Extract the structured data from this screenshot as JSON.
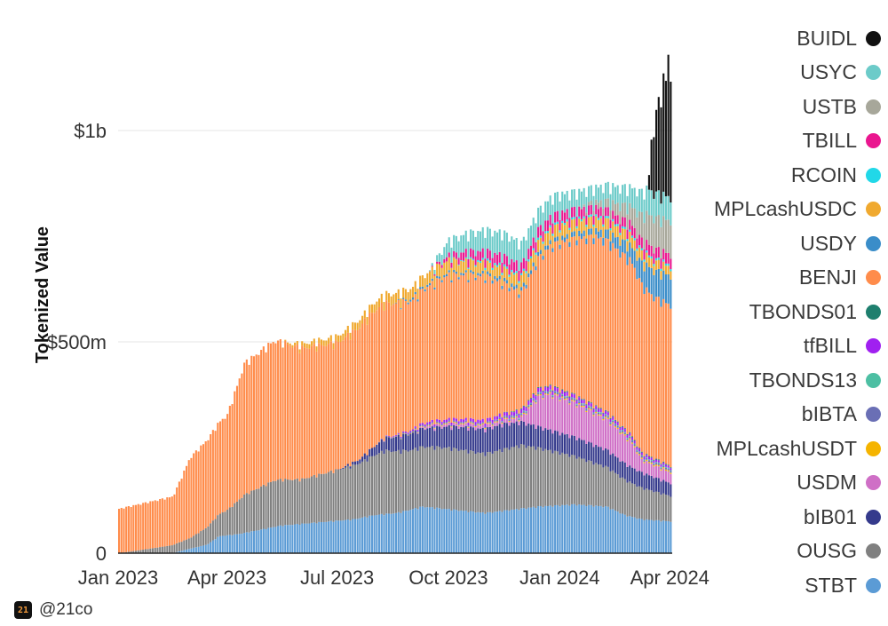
{
  "chart_data": {
    "type": "area",
    "stacked": true,
    "ylabel": "Tokenized Value",
    "ylim": [
      0,
      1250000000
    ],
    "yticks": [
      {
        "value": 0,
        "label": "0"
      },
      {
        "value": 500000000,
        "label": "$500m"
      },
      {
        "value": 1000000000,
        "label": "$1b"
      }
    ],
    "xrange": [
      "2023-01-01",
      "2024-04-03"
    ],
    "xticks": [
      {
        "date": "2023-01-01",
        "label": "Jan 2023"
      },
      {
        "date": "2023-04-01",
        "label": "Apr 2023"
      },
      {
        "date": "2023-07-01",
        "label": "Jul 2023"
      },
      {
        "date": "2023-10-01",
        "label": "Oct 2023"
      },
      {
        "date": "2024-01-01",
        "label": "Jan 2024"
      },
      {
        "date": "2024-04-01",
        "label": "Apr 2024"
      }
    ],
    "grid": "horizontal",
    "legend_position": "right",
    "series": [
      {
        "name": "STBT",
        "color": "#5b9bd5",
        "points": [
          [
            "2023-01-01",
            0
          ],
          [
            "2023-02-14",
            0
          ],
          [
            "2023-02-28",
            10
          ],
          [
            "2023-03-15",
            20
          ],
          [
            "2023-03-25",
            40
          ],
          [
            "2023-04-10",
            45
          ],
          [
            "2023-05-15",
            65
          ],
          [
            "2023-07-15",
            80
          ],
          [
            "2023-08-01",
            90
          ],
          [
            "2023-08-20",
            95
          ],
          [
            "2023-09-10",
            110
          ],
          [
            "2023-11-01",
            95
          ],
          [
            "2023-12-15",
            110
          ],
          [
            "2024-01-15",
            115
          ],
          [
            "2024-02-10",
            110
          ],
          [
            "2024-02-25",
            90
          ],
          [
            "2024-03-10",
            80
          ],
          [
            "2024-04-03",
            75
          ]
        ]
      },
      {
        "name": "OUSG",
        "color": "#808080",
        "points": [
          [
            "2023-01-01",
            0
          ],
          [
            "2023-03-01",
            25
          ],
          [
            "2023-04-01",
            60
          ],
          [
            "2023-04-15",
            90
          ],
          [
            "2023-05-10",
            110
          ],
          [
            "2023-06-01",
            105
          ],
          [
            "2023-07-01",
            120
          ],
          [
            "2023-07-20",
            130
          ],
          [
            "2023-08-10",
            150
          ],
          [
            "2023-09-01",
            140
          ],
          [
            "2023-10-01",
            145
          ],
          [
            "2023-11-01",
            140
          ],
          [
            "2023-12-01",
            150
          ],
          [
            "2024-01-01",
            125
          ],
          [
            "2024-02-01",
            100
          ],
          [
            "2024-03-01",
            80
          ],
          [
            "2024-04-03",
            60
          ]
        ]
      },
      {
        "name": "bIB01",
        "color": "#353a8c",
        "points": [
          [
            "2023-01-01",
            0
          ],
          [
            "2023-07-01",
            0
          ],
          [
            "2023-07-20",
            10
          ],
          [
            "2023-08-10",
            30
          ],
          [
            "2023-09-01",
            40
          ],
          [
            "2023-10-15",
            55
          ],
          [
            "2023-11-15",
            60
          ],
          [
            "2023-12-15",
            50
          ],
          [
            "2024-01-15",
            45
          ],
          [
            "2024-02-15",
            40
          ],
          [
            "2024-03-15",
            35
          ],
          [
            "2024-04-03",
            30
          ]
        ]
      },
      {
        "name": "USDM",
        "color": "#cf6fc6",
        "points": [
          [
            "2023-01-01",
            0
          ],
          [
            "2023-09-01",
            0
          ],
          [
            "2023-09-15",
            5
          ],
          [
            "2023-12-01",
            10
          ],
          [
            "2023-12-15",
            70
          ],
          [
            "2023-12-25",
            85
          ],
          [
            "2024-01-15",
            80
          ],
          [
            "2024-02-15",
            70
          ],
          [
            "2024-03-01",
            60
          ],
          [
            "2024-03-10",
            30
          ],
          [
            "2024-04-03",
            25
          ]
        ]
      },
      {
        "name": "MPLcashUSDT",
        "color": "#f5b400",
        "points": [
          [
            "2023-01-01",
            0
          ],
          [
            "2023-08-01",
            0
          ],
          [
            "2023-10-01",
            2
          ],
          [
            "2024-04-03",
            3
          ]
        ]
      },
      {
        "name": "bIBTA",
        "color": "#6a6fb5",
        "points": [
          [
            "2023-01-01",
            0
          ],
          [
            "2023-08-01",
            0
          ],
          [
            "2023-09-01",
            3
          ],
          [
            "2024-04-03",
            4
          ]
        ]
      },
      {
        "name": "TBONDS13",
        "color": "#4dbfa3",
        "points": [
          [
            "2023-01-01",
            0
          ],
          [
            "2023-11-01",
            0
          ],
          [
            "2023-12-01",
            2
          ],
          [
            "2024-04-03",
            2
          ]
        ]
      },
      {
        "name": "tfBILL",
        "color": "#a020f0",
        "points": [
          [
            "2023-01-01",
            0
          ],
          [
            "2023-08-01",
            0
          ],
          [
            "2023-09-15",
            5
          ],
          [
            "2023-12-15",
            10
          ],
          [
            "2024-04-03",
            5
          ]
        ]
      },
      {
        "name": "TBONDS01",
        "color": "#1e7f6e",
        "points": [
          [
            "2023-01-01",
            0
          ],
          [
            "2023-11-01",
            0
          ],
          [
            "2023-12-01",
            2
          ],
          [
            "2024-04-03",
            2
          ]
        ]
      },
      {
        "name": "BENJI",
        "color": "#ff8c4b",
        "points": [
          [
            "2023-01-01",
            105
          ],
          [
            "2023-02-15",
            115
          ],
          [
            "2023-03-01",
            190
          ],
          [
            "2023-04-01",
            225
          ],
          [
            "2023-04-15",
            310
          ],
          [
            "2023-05-10",
            330
          ],
          [
            "2023-06-01",
            310
          ],
          [
            "2023-07-01",
            300
          ],
          [
            "2023-08-01",
            320
          ],
          [
            "2023-09-01",
            305
          ],
          [
            "2023-10-01",
            340
          ],
          [
            "2023-11-01",
            340
          ],
          [
            "2023-12-01",
            275
          ],
          [
            "2024-01-01",
            345
          ],
          [
            "2024-02-01",
            400
          ],
          [
            "2024-03-01",
            410
          ],
          [
            "2024-03-20",
            380
          ],
          [
            "2024-04-03",
            380
          ]
        ]
      },
      {
        "name": "USDY",
        "color": "#3a8dc9",
        "points": [
          [
            "2023-01-01",
            0
          ],
          [
            "2023-08-15",
            0
          ],
          [
            "2023-09-01",
            5
          ],
          [
            "2023-10-15",
            5
          ],
          [
            "2023-11-15",
            8
          ],
          [
            "2024-01-01",
            10
          ],
          [
            "2024-02-01",
            15
          ],
          [
            "2024-03-01",
            35
          ],
          [
            "2024-03-15",
            60
          ],
          [
            "2024-04-03",
            70
          ]
        ]
      },
      {
        "name": "MPLcashUSDC",
        "color": "#f0a92f",
        "points": [
          [
            "2023-01-01",
            0
          ],
          [
            "2023-05-15",
            0
          ],
          [
            "2023-06-01",
            10
          ],
          [
            "2023-07-01",
            15
          ],
          [
            "2023-08-01",
            20
          ],
          [
            "2023-10-01",
            30
          ],
          [
            "2023-11-01",
            25
          ],
          [
            "2024-01-01",
            30
          ],
          [
            "2024-03-01",
            25
          ],
          [
            "2024-04-03",
            20
          ]
        ]
      },
      {
        "name": "RCOIN",
        "color": "#21d8e8",
        "points": [
          [
            "2023-01-01",
            0
          ],
          [
            "2023-10-01",
            0
          ],
          [
            "2023-11-01",
            5
          ],
          [
            "2024-04-03",
            5
          ]
        ]
      },
      {
        "name": "TBILL",
        "color": "#ea168f",
        "points": [
          [
            "2023-01-01",
            0
          ],
          [
            "2023-09-15",
            0
          ],
          [
            "2023-10-15",
            20
          ],
          [
            "2023-11-15",
            25
          ],
          [
            "2024-01-01",
            25
          ],
          [
            "2024-02-15",
            20
          ],
          [
            "2024-03-10",
            25
          ],
          [
            "2024-04-03",
            25
          ]
        ]
      },
      {
        "name": "USTB",
        "color": "#a7a79a",
        "points": [
          [
            "2023-01-01",
            0
          ],
          [
            "2024-01-15",
            0
          ],
          [
            "2024-02-10",
            20
          ],
          [
            "2024-03-01",
            40
          ],
          [
            "2024-03-15",
            70
          ],
          [
            "2024-04-03",
            80
          ]
        ]
      },
      {
        "name": "USYC",
        "color": "#6ccbc9",
        "points": [
          [
            "2023-01-01",
            0
          ],
          [
            "2023-09-15",
            0
          ],
          [
            "2023-10-01",
            35
          ],
          [
            "2023-11-01",
            50
          ],
          [
            "2023-11-20",
            55
          ],
          [
            "2023-12-15",
            45
          ],
          [
            "2024-01-01",
            45
          ],
          [
            "2024-02-01",
            35
          ],
          [
            "2024-03-01",
            45
          ],
          [
            "2024-03-15",
            60
          ],
          [
            "2024-04-03",
            55
          ]
        ]
      },
      {
        "name": "BUIDL",
        "color": "#111111",
        "points": [
          [
            "2023-01-01",
            0
          ],
          [
            "2024-03-15",
            0
          ],
          [
            "2024-03-18",
            120
          ],
          [
            "2024-03-22",
            200
          ],
          [
            "2024-03-28",
            280
          ],
          [
            "2024-04-01",
            340
          ],
          [
            "2024-04-03",
            300
          ]
        ]
      }
    ]
  },
  "legend": {
    "items": [
      {
        "label": "BUIDL",
        "color": "#111111"
      },
      {
        "label": "USYC",
        "color": "#6ccbc9"
      },
      {
        "label": "USTB",
        "color": "#a7a79a"
      },
      {
        "label": "TBILL",
        "color": "#ea168f"
      },
      {
        "label": "RCOIN",
        "color": "#21d8e8"
      },
      {
        "label": "MPLcashUSDC",
        "color": "#f0a92f"
      },
      {
        "label": "USDY",
        "color": "#3a8dc9"
      },
      {
        "label": "BENJI",
        "color": "#ff8c4b"
      },
      {
        "label": "TBONDS01",
        "color": "#1e7f6e"
      },
      {
        "label": "tfBILL",
        "color": "#a020f0"
      },
      {
        "label": "TBONDS13",
        "color": "#4dbfa3"
      },
      {
        "label": "bIBTA",
        "color": "#6a6fb5"
      },
      {
        "label": "MPLcashUSDT",
        "color": "#f5b400"
      },
      {
        "label": "USDM",
        "color": "#cf6fc6"
      },
      {
        "label": "bIB01",
        "color": "#353a8c"
      },
      {
        "label": "OUSG",
        "color": "#808080"
      },
      {
        "label": "STBT",
        "color": "#5b9bd5"
      }
    ]
  },
  "watermark": {
    "logo_text": "21",
    "handle": "@21co"
  }
}
